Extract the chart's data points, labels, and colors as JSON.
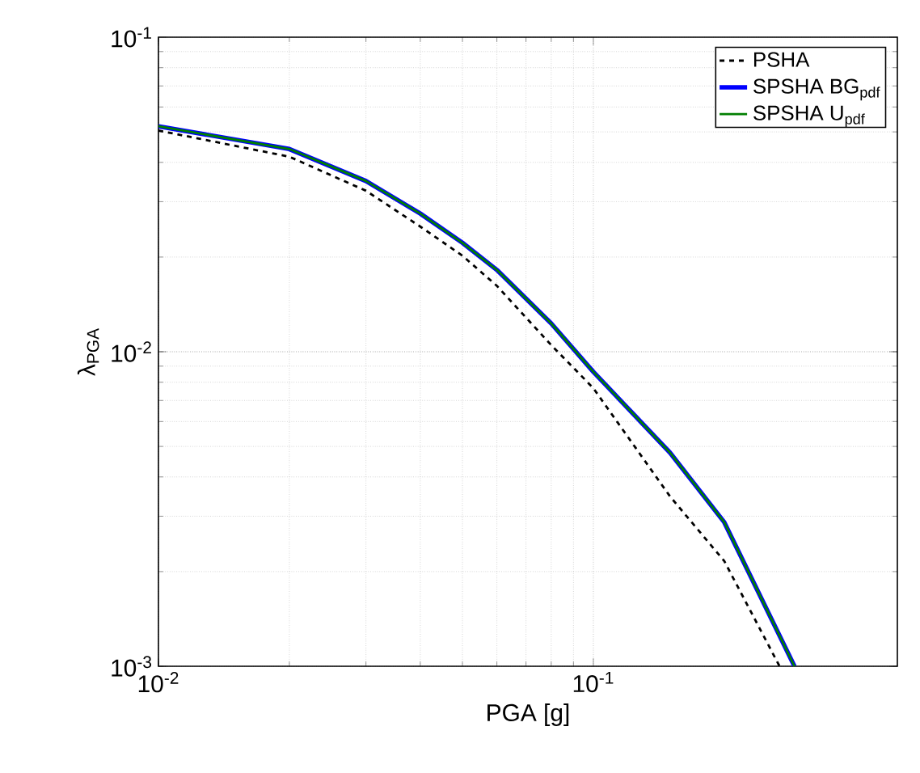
{
  "chart_data": {
    "type": "line",
    "xlabel": "PGA [g]",
    "ylabel": "λ$_{PGA}$",
    "log": "xy",
    "grid": true,
    "legend": "top right",
    "xlim": [
      0.01,
      0.5
    ],
    "ylim": [
      0.001,
      0.1
    ],
    "xticks": [
      {
        "value": 0.01,
        "label": "10$^{-2}$"
      },
      {
        "value": 0.1,
        "label": "10$^{-1}$"
      }
    ],
    "yticks": [
      {
        "value": 0.001,
        "label": "10$^{-3}$"
      },
      {
        "value": 0.01,
        "label": "10$^{-2}$"
      },
      {
        "value": 0.1,
        "label": "10$^{-1}$"
      }
    ],
    "series": [
      {
        "name": "PSHA",
        "color": "#000000",
        "line_style": "dashed",
        "x": [
          0.01,
          0.02,
          0.03,
          0.04,
          0.05,
          0.06,
          0.08,
          0.1,
          0.15,
          0.2,
          0.268
        ],
        "values": [
          0.0505,
          0.0417,
          0.0325,
          0.025,
          0.0202,
          0.0162,
          0.0105,
          0.00766,
          0.00347,
          0.00216,
          0.001
        ]
      },
      {
        "name": "SPSHA BG$_{pdf}$",
        "color": "#0000ff",
        "line_style": "solid",
        "x": [
          0.01,
          0.02,
          0.03,
          0.04,
          0.05,
          0.06,
          0.08,
          0.1,
          0.15,
          0.2,
          0.29
        ],
        "values": [
          0.0521,
          0.0441,
          0.0349,
          0.0275,
          0.0222,
          0.0182,
          0.0123,
          0.00863,
          0.00478,
          0.00287,
          0.001
        ]
      },
      {
        "name": "SPSHA U$_{pdf}$",
        "color": "#007f00",
        "line_style": "solid",
        "x": [
          0.01,
          0.02,
          0.03,
          0.04,
          0.05,
          0.06,
          0.08,
          0.1,
          0.15,
          0.2,
          0.29
        ],
        "values": [
          0.0521,
          0.0441,
          0.0349,
          0.0275,
          0.0222,
          0.0182,
          0.0123,
          0.00863,
          0.00478,
          0.00287,
          0.001
        ]
      }
    ]
  }
}
